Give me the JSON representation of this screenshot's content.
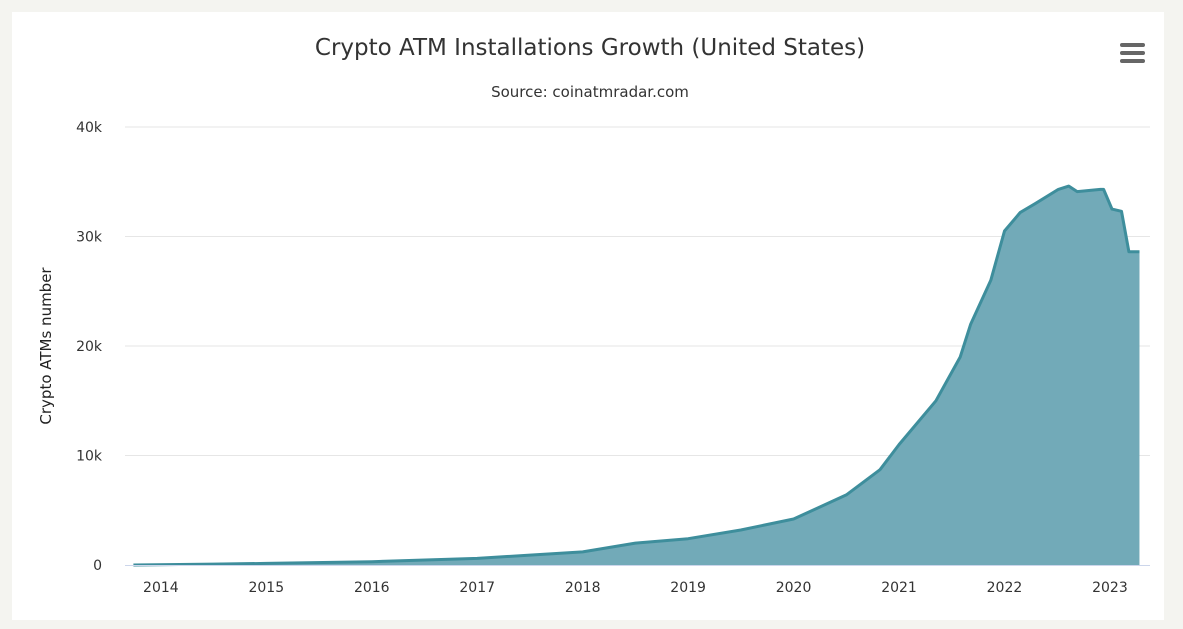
{
  "chart_data": {
    "type": "area",
    "title": "Crypto ATM Installations Growth (United States)",
    "subtitle": "Source: coinatmradar.com",
    "xlabel": "",
    "ylabel": "Crypto ATMs number",
    "ylim": [
      0,
      40000
    ],
    "xlim": [
      2013.66,
      2023.38
    ],
    "y_ticks": [
      {
        "value": 0,
        "label": "0"
      },
      {
        "value": 10000,
        "label": "10k"
      },
      {
        "value": 20000,
        "label": "20k"
      },
      {
        "value": 30000,
        "label": "30k"
      },
      {
        "value": 40000,
        "label": "40k"
      }
    ],
    "x_ticks": [
      {
        "value": 2014,
        "label": "2014"
      },
      {
        "value": 2015,
        "label": "2015"
      },
      {
        "value": 2016,
        "label": "2016"
      },
      {
        "value": 2017,
        "label": "2017"
      },
      {
        "value": 2018,
        "label": "2018"
      },
      {
        "value": 2019,
        "label": "2019"
      },
      {
        "value": 2020,
        "label": "2020"
      },
      {
        "value": 2021,
        "label": "2021"
      },
      {
        "value": 2022,
        "label": "2022"
      },
      {
        "value": 2023,
        "label": "2023"
      }
    ],
    "grid": true,
    "legend": "none",
    "series": [
      {
        "name": "Crypto ATMs",
        "color": "#3e8e9c",
        "fill": "#72aab8",
        "x": [
          2013.74,
          2014.5,
          2015.0,
          2016.0,
          2017.0,
          2017.5,
          2018.0,
          2018.5,
          2019.0,
          2019.5,
          2020.0,
          2020.25,
          2020.5,
          2020.82,
          2021.0,
          2021.35,
          2021.58,
          2021.68,
          2021.87,
          2022.0,
          2022.15,
          2022.29,
          2022.51,
          2022.61,
          2022.69,
          2022.91,
          2022.94,
          2023.02,
          2023.11,
          2023.18,
          2023.28
        ],
        "values": [
          0,
          80,
          150,
          300,
          600,
          900,
          1200,
          2000,
          2400,
          3200,
          4200,
          5300,
          6400,
          8700,
          11000,
          15000,
          19000,
          22000,
          26000,
          30500,
          32200,
          33000,
          34300,
          34600,
          34100,
          34300,
          34300,
          32500,
          32300,
          28600,
          28600
        ]
      }
    ]
  },
  "menu": {
    "icon": "hamburger-menu-icon"
  }
}
